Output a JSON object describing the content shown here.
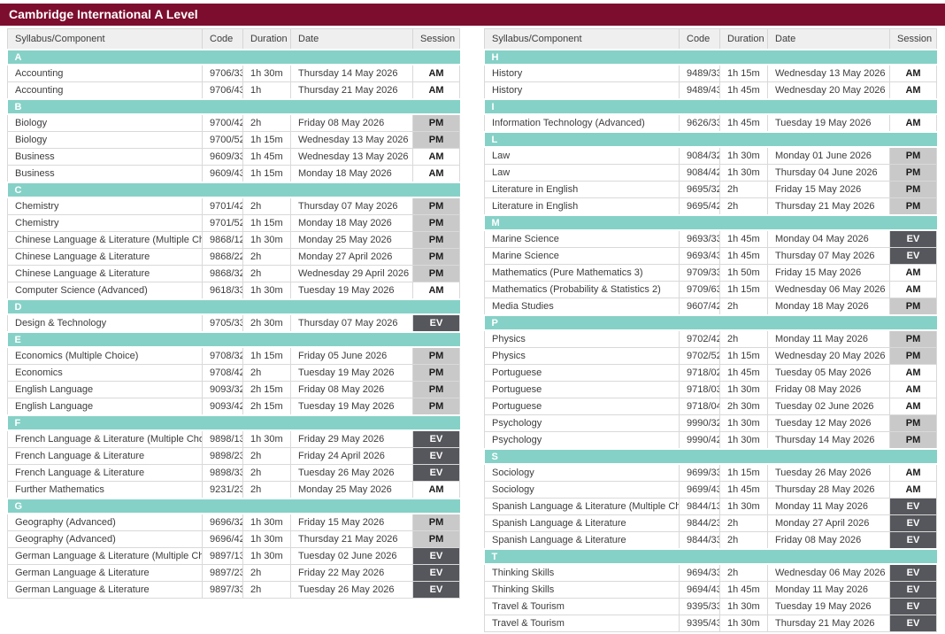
{
  "title": "Cambridge International A Level",
  "columns": [
    "Syllabus/Component",
    "Code",
    "Duration",
    "Date",
    "Session"
  ],
  "colors": {
    "header_bar": "#7d0d2e",
    "section_bar": "#85d1c7",
    "am_bg": "#ffffff",
    "am_text": "#1a1a1a",
    "pm_bg": "#c9c9c9",
    "pm_text": "#1a1a1a",
    "ev_bg": "#56575c",
    "ev_text": "#ffffff"
  },
  "tables": {
    "left": {
      "sections": [
        {
          "letter": "A",
          "rows": [
            [
              "Accounting",
              "9706/33",
              "1h 30m",
              "Thursday 14 May 2026",
              "AM"
            ],
            [
              "Accounting",
              "9706/43",
              "1h",
              "Thursday 21 May 2026",
              "AM"
            ]
          ]
        },
        {
          "letter": "B",
          "rows": [
            [
              "Biology",
              "9700/42",
              "2h",
              "Friday 08 May 2026",
              "PM"
            ],
            [
              "Biology",
              "9700/52",
              "1h 15m",
              "Wednesday 13 May 2026",
              "PM"
            ],
            [
              "Business",
              "9609/33",
              "1h 45m",
              "Wednesday 13 May 2026",
              "AM"
            ],
            [
              "Business",
              "9609/43",
              "1h 15m",
              "Monday 18 May 2026",
              "AM"
            ]
          ]
        },
        {
          "letter": "C",
          "rows": [
            [
              "Chemistry",
              "9701/42",
              "2h",
              "Thursday 07 May 2026",
              "PM"
            ],
            [
              "Chemistry",
              "9701/52",
              "1h 15m",
              "Monday 18 May 2026",
              "PM"
            ],
            [
              "Chinese Language & Literature (Multiple Choice)",
              "9868/12",
              "1h 30m",
              "Monday 25 May 2026",
              "PM"
            ],
            [
              "Chinese Language & Literature",
              "9868/22",
              "2h",
              "Monday 27 April 2026",
              "PM"
            ],
            [
              "Chinese Language & Literature",
              "9868/32",
              "2h",
              "Wednesday 29 April 2026",
              "PM"
            ],
            [
              "Computer Science (Advanced)",
              "9618/33",
              "1h 30m",
              "Tuesday 19 May 2026",
              "AM"
            ]
          ]
        },
        {
          "letter": "D",
          "rows": [
            [
              "Design & Technology",
              "9705/33",
              "2h 30m",
              "Thursday 07 May 2026",
              "EV"
            ]
          ]
        },
        {
          "letter": "E",
          "rows": [
            [
              "Economics (Multiple Choice)",
              "9708/32",
              "1h 15m",
              "Friday 05 June 2026",
              "PM"
            ],
            [
              "Economics",
              "9708/42",
              "2h",
              "Tuesday 19 May 2026",
              "PM"
            ],
            [
              "English Language",
              "9093/32",
              "2h 15m",
              "Friday 08 May 2026",
              "PM"
            ],
            [
              "English Language",
              "9093/42",
              "2h 15m",
              "Tuesday 19 May 2026",
              "PM"
            ]
          ]
        },
        {
          "letter": "F",
          "rows": [
            [
              "French Language & Literature (Multiple Choice)",
              "9898/13",
              "1h 30m",
              "Friday 29 May 2026",
              "EV"
            ],
            [
              "French Language & Literature",
              "9898/23",
              "2h",
              "Friday 24 April 2026",
              "EV"
            ],
            [
              "French Language & Literature",
              "9898/33",
              "2h",
              "Tuesday 26 May 2026",
              "EV"
            ],
            [
              "Further Mathematics",
              "9231/23",
              "2h",
              "Monday 25 May 2026",
              "AM"
            ]
          ]
        },
        {
          "letter": "G",
          "rows": [
            [
              "Geography (Advanced)",
              "9696/32",
              "1h 30m",
              "Friday 15 May 2026",
              "PM"
            ],
            [
              "Geography (Advanced)",
              "9696/42",
              "1h 30m",
              "Thursday 21 May 2026",
              "PM"
            ],
            [
              "German Language & Literature (Multiple Choice)",
              "9897/13",
              "1h 30m",
              "Tuesday 02 June 2026",
              "EV"
            ],
            [
              "German Language & Literature",
              "9897/23",
              "2h",
              "Friday 22 May 2026",
              "EV"
            ],
            [
              "German Language & Literature",
              "9897/33",
              "2h",
              "Tuesday 26 May 2026",
              "EV"
            ]
          ]
        }
      ]
    },
    "right": {
      "sections": [
        {
          "letter": "H",
          "rows": [
            [
              "History",
              "9489/33",
              "1h 15m",
              "Wednesday 13 May 2026",
              "AM"
            ],
            [
              "History",
              "9489/43",
              "1h 45m",
              "Wednesday 20 May 2026",
              "AM"
            ]
          ]
        },
        {
          "letter": "I",
          "rows": [
            [
              "Information Technology (Advanced)",
              "9626/33",
              "1h 45m",
              "Tuesday 19 May 2026",
              "AM"
            ]
          ]
        },
        {
          "letter": "L",
          "rows": [
            [
              "Law",
              "9084/32",
              "1h 30m",
              "Monday 01 June 2026",
              "PM"
            ],
            [
              "Law",
              "9084/42",
              "1h 30m",
              "Thursday 04 June 2026",
              "PM"
            ],
            [
              "Literature in English",
              "9695/32",
              "2h",
              "Friday 15 May 2026",
              "PM"
            ],
            [
              "Literature in English",
              "9695/42",
              "2h",
              "Thursday 21 May 2026",
              "PM"
            ]
          ]
        },
        {
          "letter": "M",
          "rows": [
            [
              "Marine Science",
              "9693/33",
              "1h 45m",
              "Monday 04 May 2026",
              "EV"
            ],
            [
              "Marine Science",
              "9693/43",
              "1h 45m",
              "Thursday 07 May 2026",
              "EV"
            ],
            [
              "Mathematics (Pure Mathematics 3)",
              "9709/33",
              "1h 50m",
              "Friday 15 May 2026",
              "AM"
            ],
            [
              "Mathematics (Probability & Statistics 2)",
              "9709/63",
              "1h 15m",
              "Wednesday 06 May 2026",
              "AM"
            ],
            [
              "Media Studies",
              "9607/42",
              "2h",
              "Monday 18 May 2026",
              "PM"
            ]
          ]
        },
        {
          "letter": "P",
          "rows": [
            [
              "Physics",
              "9702/42",
              "2h",
              "Monday 11 May 2026",
              "PM"
            ],
            [
              "Physics",
              "9702/52",
              "1h 15m",
              "Wednesday 20 May 2026",
              "PM"
            ],
            [
              "Portuguese",
              "9718/02",
              "1h 45m",
              "Tuesday 05 May 2026",
              "AM"
            ],
            [
              "Portuguese",
              "9718/03",
              "1h 30m",
              "Friday 08 May 2026",
              "AM"
            ],
            [
              "Portuguese",
              "9718/04",
              "2h 30m",
              "Tuesday 02 June 2026",
              "AM"
            ],
            [
              "Psychology",
              "9990/32",
              "1h 30m",
              "Tuesday 12 May 2026",
              "PM"
            ],
            [
              "Psychology",
              "9990/42",
              "1h 30m",
              "Thursday 14 May 2026",
              "PM"
            ]
          ]
        },
        {
          "letter": "S",
          "rows": [
            [
              "Sociology",
              "9699/33",
              "1h 15m",
              "Tuesday 26 May 2026",
              "AM"
            ],
            [
              "Sociology",
              "9699/43",
              "1h 45m",
              "Thursday 28 May 2026",
              "AM"
            ],
            [
              "Spanish Language & Literature (Multiple Choice)",
              "9844/13",
              "1h 30m",
              "Monday 11 May 2026",
              "EV"
            ],
            [
              "Spanish Language & Literature",
              "9844/23",
              "2h",
              "Monday 27 April 2026",
              "EV"
            ],
            [
              "Spanish Language & Literature",
              "9844/33",
              "2h",
              "Friday 08 May 2026",
              "EV"
            ]
          ]
        },
        {
          "letter": "T",
          "rows": [
            [
              "Thinking Skills",
              "9694/33",
              "2h",
              "Wednesday 06 May 2026",
              "EV"
            ],
            [
              "Thinking Skills",
              "9694/43",
              "1h 45m",
              "Monday 11 May 2026",
              "EV"
            ],
            [
              "Travel & Tourism",
              "9395/33",
              "1h 30m",
              "Tuesday 19 May 2026",
              "EV"
            ],
            [
              "Travel & Tourism",
              "9395/43",
              "1h 30m",
              "Thursday 21 May 2026",
              "EV"
            ]
          ]
        }
      ]
    }
  }
}
